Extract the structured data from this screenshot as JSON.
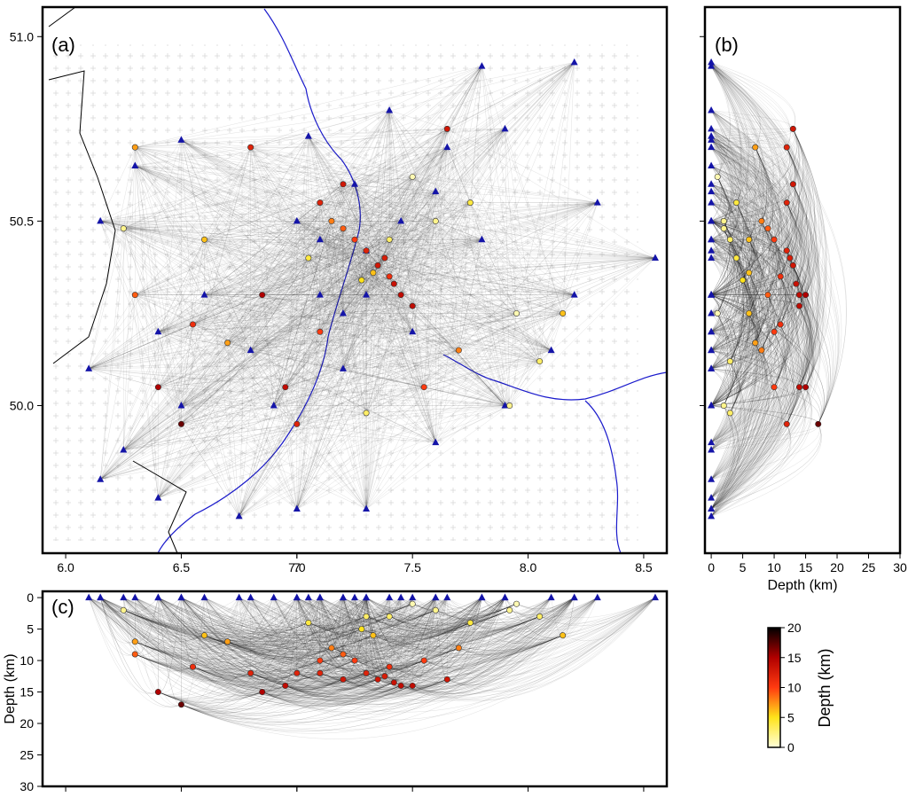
{
  "chart_data": [
    {
      "type": "map",
      "label": "(a)",
      "xlim": [
        5.9,
        8.6
      ],
      "ylim": [
        49.6,
        51.08
      ],
      "xticks": [
        {
          "value": 6,
          "label": "6.0"
        },
        6.5,
        7,
        {
          "value": 7,
          "label": "7.0"
        },
        7.5,
        {
          "value": 8,
          "label": "8.0"
        },
        8.5
      ],
      "yticks": [
        {
          "value": 50,
          "label": "50.0"
        },
        50.5,
        {
          "value": 51,
          "label": "51.0"
        }
      ],
      "stations": {
        "color": "#1414a8",
        "lon": [
          6.25,
          6.5,
          6.8,
          7.1,
          7.3,
          7.6,
          7.9,
          8.2,
          6.1,
          6.15,
          6.3,
          6.15,
          6.4,
          6.75,
          7.0,
          7.3,
          7.6,
          7.9,
          8.3,
          8.55,
          8.1,
          7.8,
          7.05,
          6.5,
          7.4,
          6.6,
          7.25,
          7.0,
          7.5,
          7.65,
          6.9,
          7.2,
          8.2,
          6.4,
          7.8,
          7.1,
          7.3,
          7.45,
          7.2
        ],
        "lat": [
          49.88,
          50.0,
          50.15,
          50.3,
          50.42,
          50.58,
          50.75,
          50.93,
          50.1,
          49.8,
          50.65,
          50.5,
          49.75,
          49.7,
          49.72,
          49.72,
          49.9,
          50.0,
          50.55,
          50.4,
          50.15,
          50.92,
          50.73,
          50.72,
          50.8,
          50.3,
          50.6,
          50.5,
          50.2,
          50.7,
          50.0,
          50.1,
          50.3,
          50.2,
          50.45,
          50.45,
          50.3,
          50.5,
          50.25
        ],
        "depth": [
          0,
          0,
          0,
          0,
          0,
          0,
          0,
          0,
          0,
          0,
          0,
          0,
          0,
          0,
          0,
          0,
          0,
          0,
          0,
          0,
          0,
          0,
          0,
          0,
          0,
          0,
          0,
          0,
          0,
          0,
          0,
          0,
          0,
          0,
          0,
          0,
          0,
          0,
          0
        ]
      },
      "events": {
        "lon": [
          7.3,
          7.35,
          7.4,
          7.45,
          7.25,
          7.2,
          7.38,
          7.42,
          7.5,
          7.33,
          7.28,
          7.15,
          7.1,
          7.05,
          7.4,
          7.2,
          6.3,
          6.25,
          6.3,
          6.4,
          6.55,
          6.6,
          6.8,
          6.95,
          7.0,
          7.3,
          7.55,
          7.7,
          7.92,
          7.95,
          8.15,
          8.05,
          7.6,
          7.75,
          6.7,
          7.65,
          6.5,
          6.85,
          7.5,
          7.1
        ],
        "lat": [
          50.42,
          50.38,
          50.35,
          50.3,
          50.45,
          50.48,
          50.4,
          50.33,
          50.27,
          50.36,
          50.34,
          50.5,
          50.55,
          50.4,
          50.45,
          50.6,
          50.7,
          50.48,
          50.3,
          50.05,
          50.22,
          50.45,
          50.7,
          50.05,
          49.95,
          49.98,
          50.05,
          50.15,
          50.0,
          50.25,
          50.25,
          50.12,
          50.5,
          50.55,
          50.17,
          50.75,
          49.95,
          50.3,
          50.62,
          50.2
        ],
        "depth": [
          12,
          13,
          11,
          14,
          10,
          9,
          12.5,
          13.5,
          14,
          6,
          5,
          8,
          12,
          4,
          3,
          13,
          7,
          2,
          9,
          15,
          11,
          6,
          12,
          14,
          12,
          3,
          10,
          8,
          2,
          1,
          6,
          3,
          2,
          4,
          7,
          13,
          17,
          15,
          1,
          10
        ]
      }
    },
    {
      "type": "depth-latitude",
      "label": "(b)",
      "xlabel": "Depth (km)",
      "xlim": [
        -1,
        30
      ],
      "xticks": [
        0,
        5,
        10,
        15,
        20,
        25,
        30
      ]
    },
    {
      "type": "longitude-depth",
      "label": "(c)",
      "ylabel": "Depth (km)",
      "ylim": [
        -1,
        30
      ],
      "yticks": [
        0,
        5,
        10,
        15,
        20,
        25,
        30
      ]
    },
    {
      "type": "colorbar",
      "label": "Depth (km)",
      "lim": [
        0,
        20
      ],
      "ticks": [
        0,
        5,
        10,
        15,
        20
      ],
      "colors": [
        "#ffffd8",
        "#ffe31a",
        "#ff3a10",
        "#b00000",
        "#000000"
      ]
    }
  ]
}
